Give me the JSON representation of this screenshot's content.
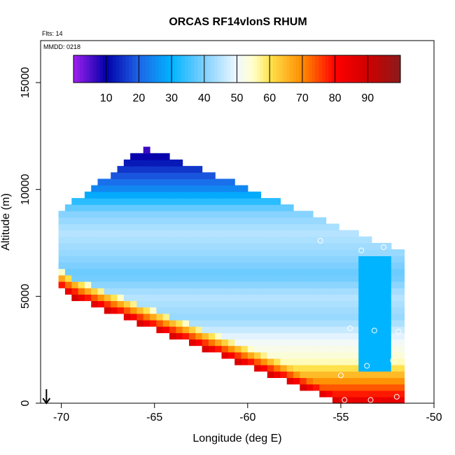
{
  "chart_data": {
    "type": "heatmap",
    "title": "ORCAS RF14vlonS RHUM",
    "notes": [
      "Flts: 14",
      "MMDD: 0218"
    ],
    "xlabel": "Longitude (deg E)",
    "ylabel": "Altitude (m)",
    "xlim": [
      -71,
      -50
    ],
    "ylim": [
      0,
      16500
    ],
    "x_ticks": [
      -70,
      -65,
      -60,
      -55,
      -50
    ],
    "y_ticks": [
      0,
      5000,
      10000,
      15000
    ],
    "x_tick_labels": [
      "-70",
      "-65",
      "-60",
      "-55",
      "-50"
    ],
    "y_tick_labels": [
      "0",
      "5000",
      "10000",
      "15000"
    ],
    "colorbar": {
      "range": [
        0,
        100
      ],
      "stops": [
        {
          "v": 0,
          "c": "#a020f0"
        },
        {
          "v": 10,
          "c": "#0000a8"
        },
        {
          "v": 20,
          "c": "#1e64e6"
        },
        {
          "v": 30,
          "c": "#00b4ff"
        },
        {
          "v": 40,
          "c": "#7fd0ff"
        },
        {
          "v": 50,
          "c": "#f0f8ff"
        },
        {
          "v": 55,
          "c": "#ffffcc"
        },
        {
          "v": 60,
          "c": "#ffe34d"
        },
        {
          "v": 70,
          "c": "#ff8c00"
        },
        {
          "v": 80,
          "c": "#ff0000"
        },
        {
          "v": 90,
          "c": "#d00000"
        },
        {
          "v": 100,
          "c": "#8b1a1a"
        }
      ],
      "ticks": [
        10,
        20,
        30,
        40,
        50,
        60,
        70,
        80,
        90
      ],
      "tick_labels": [
        "10",
        "20",
        "30",
        "40",
        "50",
        "60",
        "70",
        "80",
        "90"
      ]
    },
    "domain": {
      "x_left_bottom": -70.5,
      "y_left_bottom": 5500,
      "x_left_top": -70.0,
      "y_left_top": 9000,
      "x_apex": -65.5,
      "y_apex": 12000,
      "x_top_right": -52.0,
      "y_top_right": 7200,
      "x_right_bottom": -51.8,
      "y_right_bottom": 0,
      "x_lower_left": -69.0,
      "y_lower_left": 4800,
      "x_lower_bend": -55.0,
      "y_lower_bend": 0
    },
    "rh_layers": [
      {
        "altitude": 12000,
        "rh": 5
      },
      {
        "altitude": 11000,
        "rh": 15
      },
      {
        "altitude": 10000,
        "rh": 25
      },
      {
        "altitude": 9000,
        "rh": 40
      },
      {
        "altitude": 8000,
        "rh": 45
      },
      {
        "altitude": 7000,
        "rh": 42
      },
      {
        "altitude": 6000,
        "rh": 38
      },
      {
        "altitude": 5000,
        "rh": 45
      },
      {
        "altitude": 4000,
        "rh": 42
      },
      {
        "altitude": 3000,
        "rh": 50
      },
      {
        "altitude": 2000,
        "rh": 55
      },
      {
        "altitude": 1000,
        "rh": 70
      },
      {
        "altitude": 0,
        "rh": 85
      }
    ],
    "flight_points": [
      {
        "lon": -65.7,
        "alt": 12200
      },
      {
        "lon": -56.1,
        "alt": 7600
      },
      {
        "lon": -53.9,
        "alt": 7150
      },
      {
        "lon": -52.7,
        "alt": 7300
      },
      {
        "lon": -54.5,
        "alt": 3500
      },
      {
        "lon": -53.2,
        "alt": 3400
      },
      {
        "lon": -51.9,
        "alt": 3350
      },
      {
        "lon": -53.6,
        "alt": 1750
      },
      {
        "lon": -52.2,
        "alt": 2000
      },
      {
        "lon": -55.0,
        "alt": 1300
      },
      {
        "lon": -54.8,
        "alt": 150
      },
      {
        "lon": -53.4,
        "alt": 150
      },
      {
        "lon": -52.0,
        "alt": 300
      }
    ],
    "wind_arrow": {
      "lon": -70.8,
      "alt": 0
    }
  }
}
